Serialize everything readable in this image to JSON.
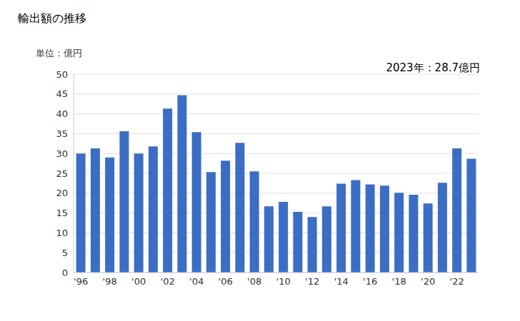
{
  "chart_data": {
    "type": "bar",
    "title": "輸出額の推移",
    "subtitle": "単位：億円",
    "annotation": "2023年：28.7億円",
    "categories": [
      "'96",
      null,
      "'98",
      null,
      "'00",
      null,
      "'02",
      null,
      "'04",
      null,
      "'06",
      null,
      "'08",
      null,
      "'10",
      null,
      "'12",
      null,
      "'14",
      null,
      "'16",
      null,
      "'18",
      null,
      "'20",
      null,
      "'22",
      null
    ],
    "values": [
      30.0,
      31.3,
      29.0,
      35.6,
      30.0,
      31.8,
      41.3,
      44.7,
      35.4,
      25.3,
      28.2,
      32.7,
      25.5,
      16.7,
      17.8,
      15.3,
      14.0,
      16.7,
      22.4,
      23.3,
      22.2,
      21.9,
      20.1,
      19.6,
      17.4,
      22.6,
      31.3,
      28.7
    ],
    "color": "#3b6dc4",
    "ylim": [
      0,
      50
    ],
    "yticks": [
      0,
      5,
      10,
      15,
      20,
      25,
      30,
      35,
      40,
      45,
      50
    ],
    "grid": true
  }
}
